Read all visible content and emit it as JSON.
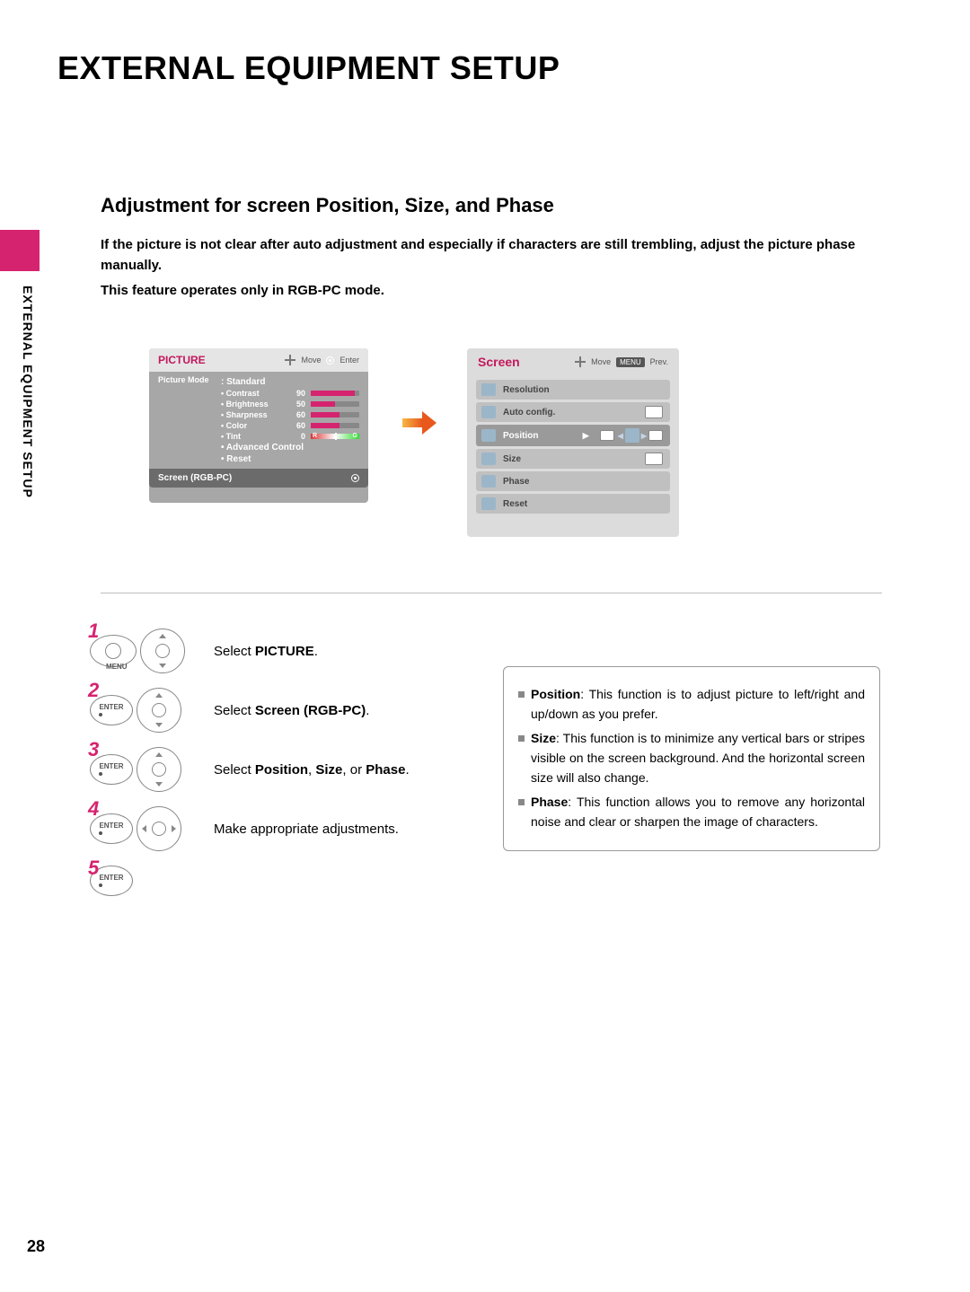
{
  "page": {
    "title": "EXTERNAL EQUIPMENT SETUP",
    "side_label": "EXTERNAL EQUIPMENT SETUP",
    "page_number": "28"
  },
  "section": {
    "title": "Adjustment for screen Position, Size, and Phase",
    "intro_line1": "If the picture is not clear after auto adjustment and especially if characters are still trembling, adjust the picture phase manually.",
    "intro_line2": "This feature operates only in RGB-PC mode."
  },
  "picture_menu": {
    "header": "PICTURE",
    "move": "Move",
    "enter": "Enter",
    "mode_label": "Picture Mode",
    "mode_value": ": Standard",
    "items": [
      {
        "label": "• Contrast",
        "value": "90",
        "pct": 90
      },
      {
        "label": "• Brightness",
        "value": "50",
        "pct": 50
      },
      {
        "label": "• Sharpness",
        "value": "60",
        "pct": 60
      },
      {
        "label": "• Color",
        "value": "60",
        "pct": 60
      }
    ],
    "tint_label": "• Tint",
    "tint_value": "0",
    "adv": "• Advanced Control",
    "reset": "• Reset",
    "screen_row": "Screen (RGB-PC)"
  },
  "screen_menu": {
    "header": "Screen",
    "move": "Move",
    "menu": "MENU",
    "prev": "Prev.",
    "items": [
      {
        "label": "Resolution"
      },
      {
        "label": "Auto config."
      },
      {
        "label": "Position"
      },
      {
        "label": "Size"
      },
      {
        "label": "Phase"
      },
      {
        "label": "Reset"
      }
    ],
    "selected_index": 2
  },
  "steps": {
    "s1": "Select PICTURE.",
    "s1_bold": "PICTURE",
    "s2_pre": "Select ",
    "s2_bold": "Screen (RGB-PC)",
    "s2_post": ".",
    "s3_pre": "Select ",
    "s3_b1": "Position",
    "s3_mid1": ", ",
    "s3_b2": "Size",
    "s3_mid2": ", or ",
    "s3_b3": "Phase",
    "s3_post": ".",
    "s4": "Make appropriate adjustments.",
    "menu_label": "MENU",
    "enter_label": "ENTER"
  },
  "info": {
    "i1_b": "Position",
    "i1": ": This function is to adjust picture to left/right and up/down as you prefer.",
    "i2_b": "Size",
    "i2": ": This function is to minimize any vertical bars or stripes visible on the screen background. And the horizontal screen size will also change.",
    "i3_b": "Phase",
    "i3": ": This function allows you to remove any horizontal noise and clear or sharpen the image of characters."
  },
  "colors": {
    "accent": "#d6236f",
    "arrow_start": "#f7b844",
    "arrow_end": "#e8581c"
  }
}
